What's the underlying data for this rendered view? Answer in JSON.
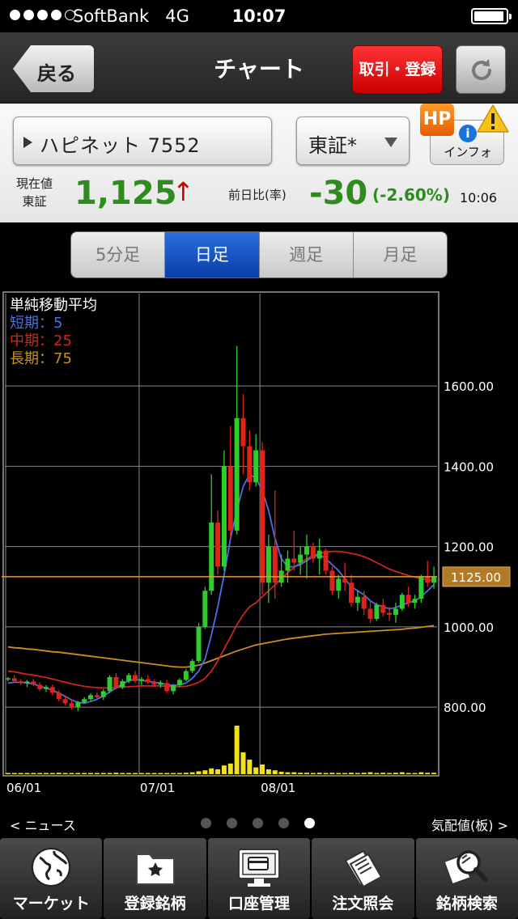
{
  "status_bar": {
    "carrier": "SoftBank",
    "network": "4G",
    "time": "10:07",
    "signal_bars_filled": 4,
    "signal_bars_total": 5,
    "battery_level": 0.95
  },
  "nav": {
    "back_label": "戻る",
    "title": "チャート",
    "trade_label": "取引・登録",
    "refresh_icon": "refresh-icon"
  },
  "quote": {
    "symbol_label": "ハピネット 7552",
    "market_label": "東証*",
    "hp_label": "HP",
    "info_label": "インフォ",
    "price_caption_line1": "現在値",
    "price_caption_line2": "東証",
    "price": "1,125",
    "price_arrow": "↑",
    "change_caption": "前日比(率)",
    "change": "-30",
    "change_pct": "(-2.60%)",
    "time": "10:06"
  },
  "period_tabs": [
    {
      "label": "5分足",
      "active": false
    },
    {
      "label": "日足",
      "active": true
    },
    {
      "label": "週足",
      "active": false
    },
    {
      "label": "月足",
      "active": false
    }
  ],
  "chart_data": {
    "type": "candlestick",
    "legend": {
      "title": "単純移動平均",
      "short": "短期：5",
      "mid": "中期：25",
      "long": "長期：75"
    },
    "colors": {
      "up": "#2ecc2e",
      "down": "#e0231a",
      "ma_short": "#4a6fe8",
      "ma_mid": "#c8281e",
      "ma_long": "#c8911c",
      "current_line": "#e89a3a",
      "volume": "#f2e11a",
      "grid": "#8a8a8a"
    },
    "y_ticks": [
      "1600.00",
      "1400.00",
      "1200.00",
      "1000.00",
      "800.00"
    ],
    "y_tick_values": [
      1600,
      1400,
      1200,
      1000,
      800
    ],
    "ylim": [
      750,
      1830
    ],
    "x_ticks": [
      "06/01",
      "07/01",
      "08/01"
    ],
    "x_tick_index": [
      0,
      21,
      40
    ],
    "current_price_label": "1125.00",
    "current_price": 1125,
    "candles": [
      [
        870,
        875,
        865,
        872
      ],
      [
        872,
        880,
        862,
        865
      ],
      [
        865,
        870,
        855,
        860
      ],
      [
        860,
        868,
        850,
        864
      ],
      [
        864,
        870,
        852,
        856
      ],
      [
        856,
        862,
        840,
        845
      ],
      [
        845,
        855,
        838,
        850
      ],
      [
        850,
        856,
        830,
        836
      ],
      [
        836,
        842,
        815,
        820
      ],
      [
        820,
        830,
        805,
        810
      ],
      [
        810,
        820,
        795,
        800
      ],
      [
        800,
        815,
        790,
        812
      ],
      [
        812,
        825,
        808,
        820
      ],
      [
        820,
        835,
        815,
        830
      ],
      [
        830,
        838,
        820,
        825
      ],
      [
        825,
        845,
        818,
        840
      ],
      [
        840,
        880,
        835,
        875
      ],
      [
        875,
        885,
        845,
        850
      ],
      [
        850,
        870,
        845,
        865
      ],
      [
        865,
        885,
        860,
        880
      ],
      [
        880,
        890,
        860,
        865
      ],
      [
        865,
        875,
        855,
        870
      ],
      [
        870,
        880,
        858,
        862
      ],
      [
        862,
        870,
        850,
        856
      ],
      [
        856,
        866,
        848,
        860
      ],
      [
        860,
        868,
        835,
        840
      ],
      [
        840,
        858,
        832,
        855
      ],
      [
        855,
        872,
        850,
        868
      ],
      [
        868,
        895,
        865,
        890
      ],
      [
        890,
        920,
        885,
        915
      ],
      [
        915,
        1010,
        910,
        1000
      ],
      [
        1000,
        1100,
        995,
        1090
      ],
      [
        1090,
        1380,
        1080,
        1260
      ],
      [
        1260,
        1290,
        1130,
        1150
      ],
      [
        1150,
        1440,
        1140,
        1400
      ],
      [
        1400,
        1500,
        1220,
        1240
      ],
      [
        1240,
        1700,
        1230,
        1520
      ],
      [
        1520,
        1580,
        1380,
        1450
      ],
      [
        1450,
        1490,
        1340,
        1360
      ],
      [
        1360,
        1480,
        1350,
        1440
      ],
      [
        1440,
        1460,
        1080,
        1110
      ],
      [
        1110,
        1230,
        1060,
        1200
      ],
      [
        1200,
        1340,
        1070,
        1110
      ],
      [
        1110,
        1180,
        1100,
        1140
      ],
      [
        1140,
        1190,
        1110,
        1170
      ],
      [
        1170,
        1240,
        1140,
        1160
      ],
      [
        1160,
        1200,
        1130,
        1180
      ],
      [
        1180,
        1230,
        1120,
        1200
      ],
      [
        1200,
        1210,
        1160,
        1170
      ],
      [
        1170,
        1220,
        1130,
        1190
      ],
      [
        1190,
        1195,
        1130,
        1140
      ],
      [
        1140,
        1150,
        1080,
        1090
      ],
      [
        1090,
        1130,
        1070,
        1120
      ],
      [
        1120,
        1160,
        1090,
        1110
      ],
      [
        1110,
        1130,
        1050,
        1060
      ],
      [
        1060,
        1090,
        1040,
        1075
      ],
      [
        1075,
        1090,
        1030,
        1045
      ],
      [
        1045,
        1065,
        1010,
        1020
      ],
      [
        1020,
        1060,
        1015,
        1055
      ],
      [
        1055,
        1070,
        1025,
        1035
      ],
      [
        1035,
        1050,
        1015,
        1030
      ],
      [
        1030,
        1060,
        1010,
        1045
      ],
      [
        1045,
        1085,
        1040,
        1080
      ],
      [
        1080,
        1100,
        1050,
        1060
      ],
      [
        1060,
        1080,
        1045,
        1070
      ],
      [
        1070,
        1130,
        1060,
        1125
      ],
      [
        1125,
        1165,
        1100,
        1110
      ],
      [
        1110,
        1150,
        1095,
        1125
      ]
    ],
    "volume": [
      0.02,
      0.01,
      0.02,
      0.01,
      0.02,
      0.02,
      0.01,
      0.02,
      0.03,
      0.02,
      0.02,
      0.01,
      0.02,
      0.02,
      0.01,
      0.02,
      0.02,
      0.03,
      0.02,
      0.02,
      0.01,
      0.02,
      0.02,
      0.01,
      0.02,
      0.02,
      0.01,
      0.02,
      0.03,
      0.04,
      0.06,
      0.08,
      0.12,
      0.1,
      0.18,
      0.22,
      1.0,
      0.45,
      0.3,
      0.14,
      0.2,
      0.1,
      0.08,
      0.05,
      0.04,
      0.04,
      0.03,
      0.03,
      0.02,
      0.03,
      0.02,
      0.03,
      0.02,
      0.02,
      0.03,
      0.02,
      0.03,
      0.04,
      0.02,
      0.03,
      0.02,
      0.03,
      0.04,
      0.02,
      0.02,
      0.04,
      0.03,
      0.03
    ],
    "ma_short": [
      860,
      862,
      862,
      860,
      858,
      852,
      848,
      842,
      835,
      827,
      818,
      812,
      810,
      814,
      820,
      828,
      838,
      848,
      858,
      866,
      870,
      867,
      864,
      862,
      860,
      856,
      854,
      856,
      860,
      872,
      890,
      920,
      980,
      1050,
      1130,
      1220,
      1290,
      1350,
      1380,
      1370,
      1340,
      1290,
      1220,
      1170,
      1150,
      1150,
      1155,
      1165,
      1175,
      1180,
      1170,
      1155,
      1140,
      1120,
      1100,
      1090,
      1080,
      1065,
      1055,
      1050,
      1045,
      1048,
      1055,
      1060,
      1065,
      1075,
      1090,
      1105
    ],
    "ma_mid": [
      890,
      888,
      885,
      882,
      880,
      877,
      874,
      870,
      866,
      862,
      858,
      855,
      852,
      850,
      849,
      848,
      848,
      849,
      850,
      851,
      852,
      853,
      853,
      853,
      853,
      852,
      851,
      851,
      852,
      856,
      862,
      872,
      890,
      915,
      945,
      975,
      1005,
      1030,
      1050,
      1060,
      1075,
      1090,
      1105,
      1120,
      1135,
      1148,
      1160,
      1170,
      1178,
      1183,
      1186,
      1188,
      1188,
      1186,
      1183,
      1180,
      1175,
      1168,
      1160,
      1152,
      1144,
      1138,
      1133,
      1128,
      1124,
      1120,
      1118,
      1115
    ],
    "ma_long": [
      950,
      948,
      947,
      945,
      944,
      942,
      940,
      938,
      937,
      935,
      933,
      931,
      929,
      927,
      925,
      923,
      921,
      919,
      917,
      915,
      913,
      911,
      909,
      907,
      905,
      903,
      901,
      900,
      900,
      902,
      905,
      910,
      916,
      922,
      928,
      934,
      940,
      945,
      950,
      955,
      958,
      961,
      964,
      967,
      970,
      972,
      974,
      976,
      978,
      980,
      982,
      983,
      984,
      985,
      986,
      987,
      988,
      989,
      990,
      991,
      992,
      993,
      994,
      996,
      997,
      999,
      1001,
      1003
    ]
  },
  "pager": {
    "left_label": "< ニュース",
    "right_label": "気配値(板) >",
    "count": 5,
    "active_index": 4
  },
  "tabbar": [
    {
      "label": "マーケット",
      "icon": "globe-icon"
    },
    {
      "label": "登録銘柄",
      "icon": "star-folder-icon"
    },
    {
      "label": "口座管理",
      "icon": "monitor-card-icon"
    },
    {
      "label": "注文照会",
      "icon": "documents-icon"
    },
    {
      "label": "銘柄検索",
      "icon": "magnifier-icon"
    }
  ]
}
